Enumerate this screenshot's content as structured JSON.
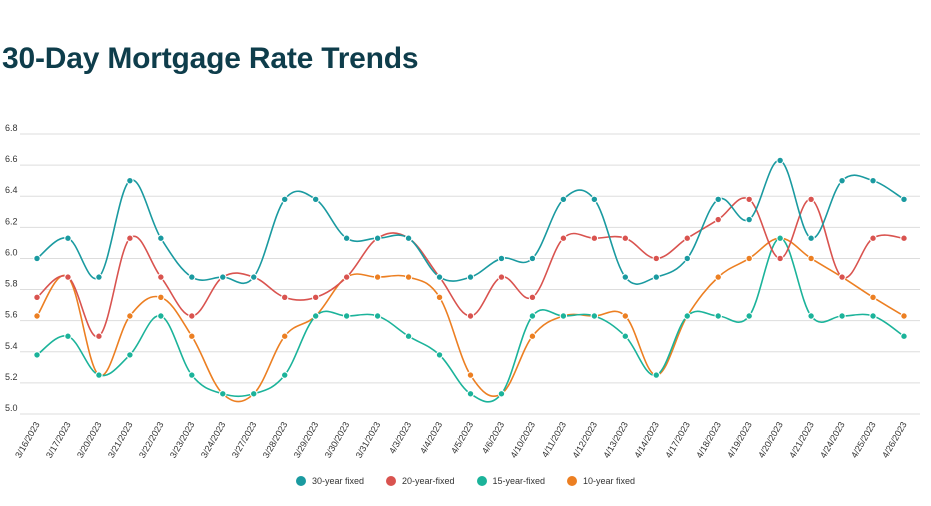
{
  "title": "30-Day Mortgage Rate Trends",
  "colors": {
    "title": "#0e3d4b",
    "grid": "#dddddd",
    "series": [
      "#1a9aa0",
      "#d9534f",
      "#1bb39a",
      "#ec7f22"
    ]
  },
  "chart_data": {
    "type": "line",
    "title": "30-Day Mortgage Rate Trends",
    "xlabel": "",
    "ylabel": "",
    "ylim": [
      5.0,
      6.8
    ],
    "yticks": [
      5.0,
      5.2,
      5.4,
      5.6,
      5.8,
      6.0,
      6.2,
      6.4,
      6.6,
      6.8
    ],
    "grid": true,
    "legend": "bottom-center",
    "categories": [
      "3/16/2023",
      "3/17/2023",
      "3/20/2023",
      "3/21/2023",
      "3/22/2023",
      "3/23/2023",
      "3/24/2023",
      "3/27/2023",
      "3/28/2023",
      "3/29/2023",
      "3/30/2023",
      "3/31/2023",
      "4/3/2023",
      "4/4/2023",
      "4/5/2023",
      "4/6/2023",
      "4/10/2023",
      "4/11/2023",
      "4/12/2023",
      "4/13/2023",
      "4/14/2023",
      "4/17/2023",
      "4/18/2023",
      "4/19/2023",
      "4/20/2023",
      "4/21/2023",
      "4/24/2023",
      "4/25/2023",
      "4/26/2023"
    ],
    "series": [
      {
        "name": "30-year fixed",
        "values": [
          6.0,
          6.13,
          5.88,
          6.5,
          6.13,
          5.88,
          5.88,
          5.88,
          6.38,
          6.38,
          6.13,
          6.13,
          6.13,
          5.88,
          5.88,
          6.0,
          6.0,
          6.38,
          6.38,
          5.88,
          5.88,
          6.0,
          6.38,
          6.25,
          6.63,
          6.13,
          6.5,
          6.5,
          6.38
        ]
      },
      {
        "name": "20-year-fixed",
        "values": [
          5.75,
          5.88,
          5.5,
          6.13,
          5.88,
          5.63,
          5.88,
          5.88,
          5.75,
          5.75,
          5.88,
          6.13,
          6.13,
          5.88,
          5.63,
          5.88,
          5.75,
          6.13,
          6.13,
          6.13,
          6.0,
          6.13,
          6.25,
          6.38,
          6.0,
          6.38,
          5.88,
          6.13,
          6.13
        ]
      },
      {
        "name": "15-year-fixed",
        "values": [
          5.38,
          5.5,
          5.25,
          5.38,
          5.63,
          5.25,
          5.13,
          5.13,
          5.25,
          5.63,
          5.63,
          5.63,
          5.5,
          5.38,
          5.13,
          5.13,
          5.63,
          5.63,
          5.63,
          5.5,
          5.25,
          5.63,
          5.63,
          5.63,
          6.13,
          5.63,
          5.63,
          5.63,
          5.5
        ]
      },
      {
        "name": "10-year fixed",
        "values": [
          5.63,
          5.88,
          5.25,
          5.63,
          5.75,
          5.5,
          5.13,
          5.13,
          5.5,
          5.63,
          5.88,
          5.88,
          5.88,
          5.75,
          5.25,
          5.13,
          5.5,
          5.63,
          5.63,
          5.63,
          5.25,
          5.63,
          5.88,
          6.0,
          6.13,
          6.0,
          5.88,
          5.75,
          5.63
        ]
      }
    ]
  }
}
